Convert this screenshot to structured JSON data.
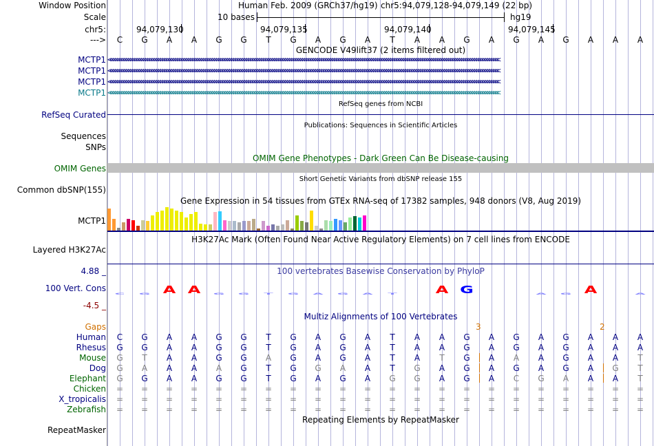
{
  "header": {
    "window_position_label": "Window Position",
    "assembly_text": "Human Feb. 2009 (GRCh37/hg19)",
    "position_text": "chr5:94,079,128-94,079,149 (22 bp)",
    "scale_label": "Scale",
    "scale_text": "10 bases",
    "db_text": "hg19",
    "chrom_label": "chr5:",
    "strand_label": "--->",
    "coord_ticks": [
      "94,079,130",
      "94,079,135",
      "94,079,140",
      "94,079,145"
    ]
  },
  "sequence": [
    "C",
    "G",
    "A",
    "A",
    "G",
    "G",
    "T",
    "G",
    "A",
    "G",
    "A",
    "T",
    "A",
    "A",
    "G",
    "A",
    "G",
    "A",
    "G",
    "A",
    "A",
    "A"
  ],
  "tracks": {
    "gencode": {
      "title": "GENCODE V49lift37 (2 items filtered out)",
      "items": [
        "MCTP1",
        "MCTP1",
        "MCTP1",
        "MCTP1"
      ],
      "arrows": "<<<<<<<<<<<<<<<<<<<<<<<<<<<<<<<<<<<<<<<<<<<<<<<<<<<<<<<<<<<<<<<<<<<<<<<<<<<<<<<<<<<<<<<<<<<<<<<<<<<<<<<<<<<<<<<<<<<<<<<<<<<<<<<<<<<<<<<<<<<<<<<<<<<<<<<<<<<<<<<<<<<<<<<<<<<<<<<<<<<<<<"
    },
    "refseq": {
      "title": "RefSeq genes from NCBI",
      "label": "RefSeq Curated"
    },
    "publications": {
      "title": "Publications: Sequences in Scientific Articles",
      "label_seq": "Sequences",
      "label_snp": "SNPs"
    },
    "omim": {
      "title": "OMIM Gene Phenotypes - Dark Green Can Be Disease-causing",
      "label": "OMIM Genes"
    },
    "dbsnp": {
      "title": "Short Genetic Variants from dbSNP release 155",
      "label": "Common dbSNP(155)"
    },
    "gtex": {
      "title": "Gene Expression in 54 tissues from GTEx RNA-seq of 17382 samples, 948 donors (V8, Aug 2019)",
      "label": "MCTP1",
      "tissue_expression": [
        0.95,
        0.5,
        0.12,
        0.35,
        0.5,
        0.45,
        0.2,
        0.45,
        0.4,
        0.65,
        0.8,
        0.85,
        1.0,
        0.95,
        0.85,
        0.8,
        0.55,
        0.7,
        0.8,
        0.3,
        0.25,
        0.25,
        0.8,
        0.82,
        0.45,
        0.4,
        0.4,
        0.35,
        0.4,
        0.4,
        0.5,
        0.1,
        0.4,
        0.22,
        0.25,
        0.2,
        0.25,
        0.45,
        0.1,
        0.65,
        0.4,
        0.35,
        0.85,
        0.2,
        0.1,
        0.45,
        0.4,
        0.5,
        0.45,
        0.35,
        0.55,
        0.62,
        0.55,
        0.65
      ],
      "tissue_colors": [
        "#ff9933",
        "#ff9933",
        "#888888",
        "#cc9966",
        "#cc0066",
        "#ff0000",
        "#cc3300",
        "#cccc99",
        "#ffcc33",
        "#eeee00",
        "#eeee00",
        "#eeee00",
        "#eeee00",
        "#eeee00",
        "#eeee00",
        "#eeee00",
        "#eeee00",
        "#eeee00",
        "#eeee00",
        "#eeee00",
        "#eeee00",
        "#cccc66",
        "#ffb6c1",
        "#33ccff",
        "#ff66cc",
        "#cccccc",
        "#aabbcc",
        "#aaaaaa",
        "#9999cc",
        "#ccaa99",
        "#bbaa88",
        "#996633",
        "#cc99cc",
        "#cc66cc",
        "#7777aa",
        "#aaaaaa",
        "#bbbbbb",
        "#ccaa99",
        "#888855",
        "#99cc00",
        "#88aa44",
        "#777777",
        "#ffdd00",
        "#cccccc",
        "#888888",
        "#aaddaa",
        "#99eebb",
        "#3399ff",
        "#6699ff",
        "#66aa66",
        "#99ee99",
        "#006633",
        "#00ccdd",
        "#ff00cc"
      ]
    },
    "h3k27ac": {
      "title": "H3K27Ac Mark (Often Found Near Active Regulatory Elements) on 7 cell lines from ENCODE",
      "label": "Layered H3K27Ac"
    },
    "phylop": {
      "title": "100 vertebrates Basewise Conservation by PhyloP",
      "label": "100 Vert. Cons",
      "ymax_label": "4.88 _",
      "ymin_label": "-4.5 _"
    },
    "multiz": {
      "title": "Multiz Alignments of 100 Vertebrates",
      "gaps_label": "Gaps",
      "gap_counts": [
        "3",
        "2"
      ],
      "species": [
        {
          "name": "Human",
          "bases": [
            "C",
            "G",
            "A",
            "A",
            "G",
            "G",
            "T",
            "G",
            "A",
            "G",
            "A",
            "T",
            "A",
            "A",
            "G",
            "A",
            "G",
            "A",
            "G",
            "A",
            "A",
            "A"
          ]
        },
        {
          "name": "Rhesus",
          "bases": [
            "G",
            "G",
            "A",
            "A",
            "G",
            "G",
            "T",
            "G",
            "A",
            "G",
            "A",
            "T",
            "A",
            "A",
            "G",
            "A",
            "G",
            "A",
            "G",
            "A",
            "A",
            "A"
          ]
        },
        {
          "name": "Mouse",
          "bases": [
            "G",
            "T",
            "A",
            "A",
            "G",
            "G",
            "A",
            "G",
            "A",
            "G",
            "A",
            "T",
            "A",
            "T",
            "G",
            "A",
            "A",
            "A",
            "G",
            "A",
            "A",
            "T"
          ]
        },
        {
          "name": "Dog",
          "bases": [
            "G",
            "A",
            "A",
            "A",
            "A",
            "G",
            "T",
            "G",
            "G",
            "A",
            "A",
            "T",
            "G",
            "A",
            "G",
            "A",
            "G",
            "A",
            "G",
            "A",
            "G",
            "T"
          ]
        },
        {
          "name": "Elephant",
          "bases": [
            "G",
            "G",
            "A",
            "A",
            "G",
            "G",
            "T",
            "G",
            "A",
            "G",
            "A",
            "G",
            "G",
            "A",
            "G",
            "A",
            "C",
            "G",
            "A",
            "A",
            "A",
            "T"
          ]
        },
        {
          "name": "Chicken",
          "bases": [
            "=",
            "=",
            "=",
            "=",
            "=",
            "=",
            "=",
            "=",
            "=",
            "=",
            "=",
            "=",
            "=",
            "=",
            "=",
            "=",
            "=",
            "=",
            "=",
            "=",
            "=",
            "="
          ]
        },
        {
          "name": "X_tropicalis",
          "bases": [
            "=",
            "=",
            "=",
            "=",
            "=",
            "=",
            "=",
            "=",
            "=",
            "=",
            "=",
            "=",
            "=",
            "=",
            "=",
            "=",
            "=",
            "=",
            "=",
            "=",
            "=",
            "="
          ]
        },
        {
          "name": "Zebrafish",
          "bases": [
            "=",
            "=",
            "=",
            "=",
            "=",
            "=",
            "=",
            "=",
            "=",
            "=",
            "=",
            "=",
            "=",
            "=",
            "=",
            "=",
            "=",
            "=",
            "=",
            "=",
            "=",
            "="
          ]
        }
      ]
    },
    "repeatmasker": {
      "title": "Repeating Elements by RepeatMasker",
      "label": "RepeatMasker"
    }
  },
  "colors": {
    "track_blue": "#000080",
    "gene_teal": "#0a7a8a",
    "omim_gray": "#c0c0c0",
    "gaps_orange": "#d07000",
    "conserved": "#000080",
    "mismatch": "#7f7f7f",
    "grid": "#b4b4dc",
    "phylop_pos": "#ff0000",
    "phylop_neg": "#0000ff"
  }
}
